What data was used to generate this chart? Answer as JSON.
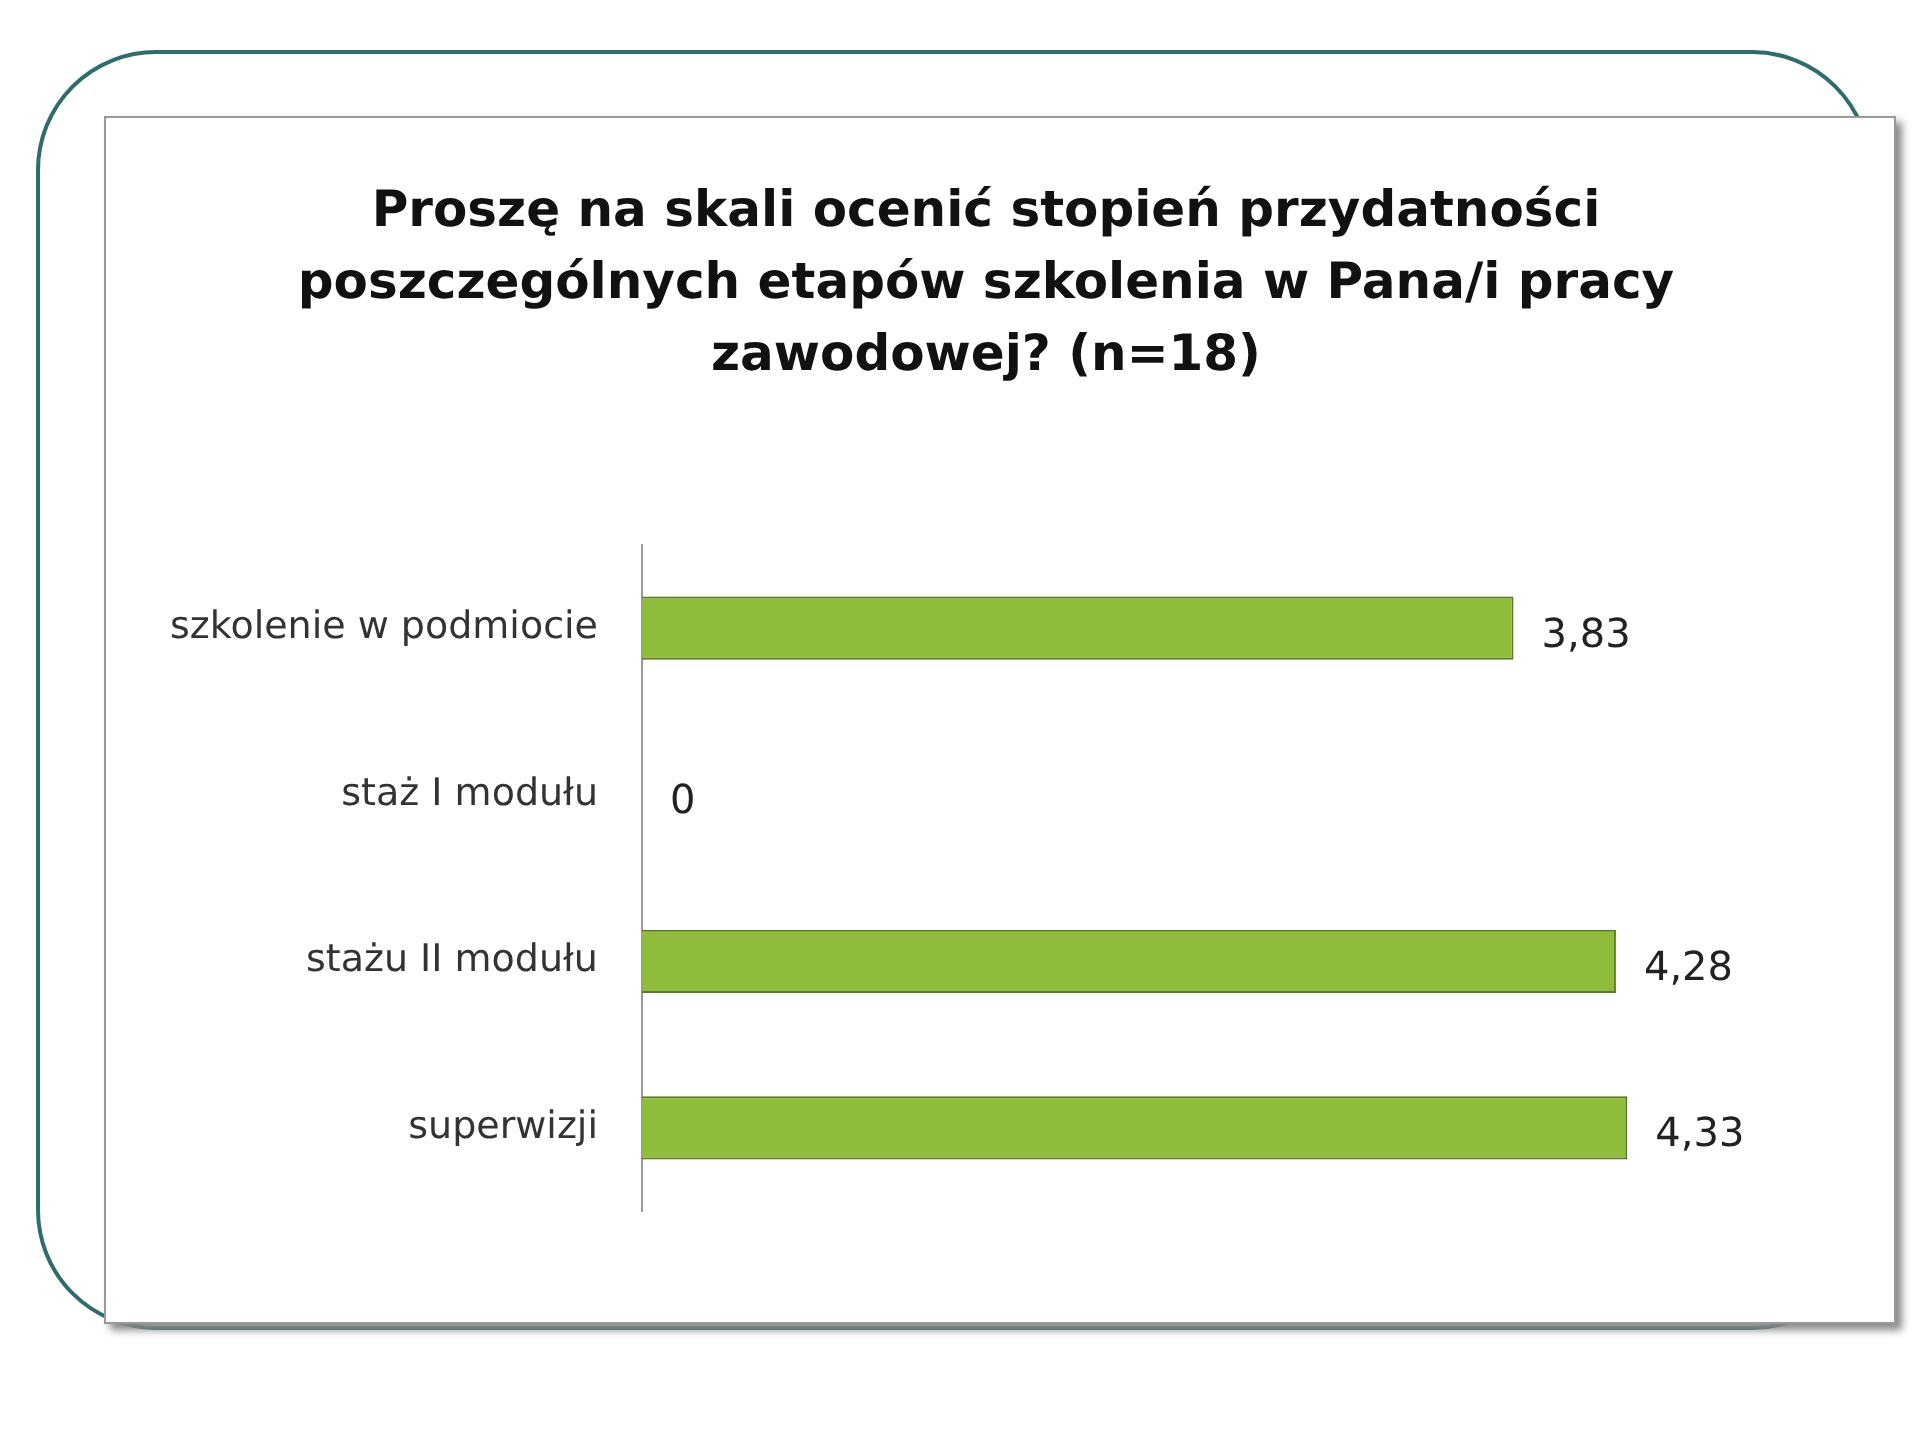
{
  "chart_data": {
    "type": "bar",
    "orientation": "horizontal",
    "title": "Proszę na skali ocenić stopień przydatności poszczególnych etapów szkolenia w Pana/i pracy zawodowej? (n=18)",
    "categories": [
      "szkolenie w podmiocie",
      "staż I modułu",
      "stażu II modułu",
      "superwizji"
    ],
    "values": [
      3.83,
      0,
      4.28,
      4.33
    ],
    "value_labels": [
      "3,83",
      "0",
      "4,28",
      "4,33"
    ],
    "color": "#8fbc3b"
  }
}
